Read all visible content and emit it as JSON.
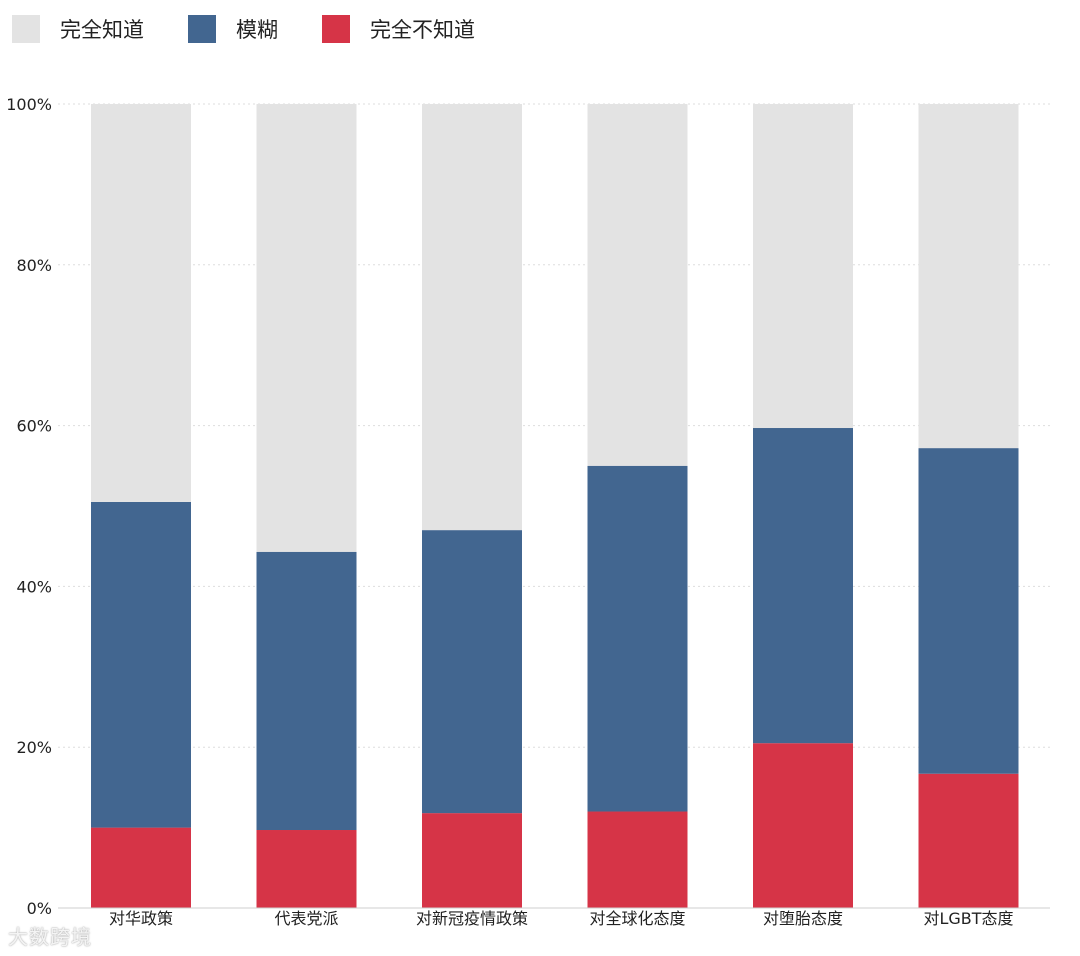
{
  "legend": [
    {
      "label": "完全知道",
      "color": "#e3e3e3"
    },
    {
      "label": "模糊",
      "color": "#426690"
    },
    {
      "label": "完全不知道",
      "color": "#d63447"
    }
  ],
  "watermark": "大数跨境",
  "chart_data": {
    "type": "bar",
    "stacked": true,
    "categories": [
      "对华政策",
      "代表党派",
      "对新冠疫情政策",
      "对全球化态度",
      "对堕胎态度",
      "对LGBT态度"
    ],
    "series": [
      {
        "name": "完全不知道",
        "color": "#d63447",
        "values": [
          10,
          9.7,
          11.8,
          12,
          20.5,
          16.7
        ]
      },
      {
        "name": "模糊",
        "color": "#426690",
        "values": [
          40.5,
          34.6,
          35.2,
          43,
          39.2,
          40.5
        ]
      },
      {
        "name": "完全知道",
        "color": "#e3e3e3",
        "values": [
          49.5,
          55.7,
          53,
          45,
          40.3,
          42.8
        ]
      }
    ],
    "ylim": [
      0,
      100
    ],
    "yticks": [
      "0%",
      "20%",
      "40%",
      "60%",
      "80%",
      "100%"
    ],
    "ytick_values": [
      0,
      20,
      40,
      60,
      80,
      100
    ],
    "grid": true,
    "legend_position": "top-left"
  }
}
